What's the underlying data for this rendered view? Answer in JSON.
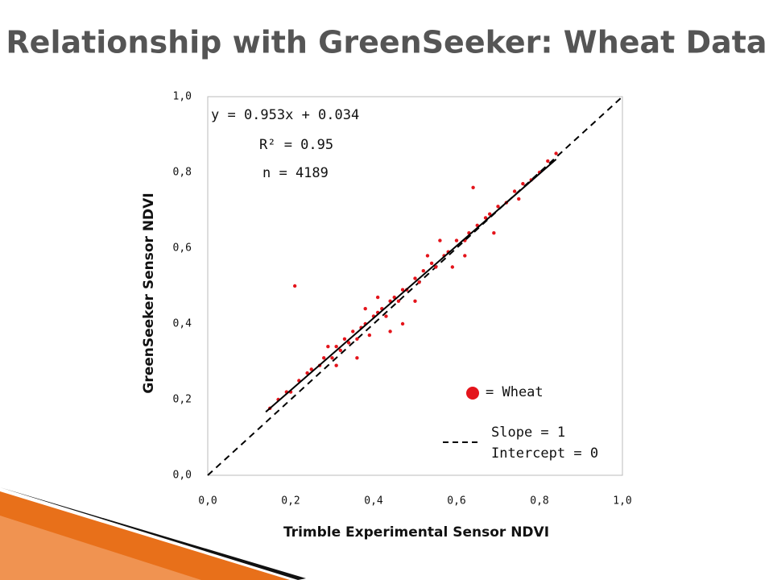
{
  "chart_data": {
    "type": "scatter",
    "title": "Relationship with GreenSeeker: Wheat Data",
    "x_label": "Trimble Experimental Sensor NDVI",
    "y_label": "GreenSeeker Sensor NDVI",
    "annotations": [
      "y = 0.953x + 0.034",
      "R² = 0.95",
      "n = 4189"
    ],
    "xlim": [
      0,
      1
    ],
    "ylim": [
      0,
      1
    ],
    "xticks": [
      {
        "value": 0,
        "label": "0,0"
      },
      {
        "value": 0.2,
        "label": "0,2"
      },
      {
        "value": 0.4,
        "label": "0,4"
      },
      {
        "value": 0.6,
        "label": "0,6"
      },
      {
        "value": 0.8,
        "label": "0,8"
      },
      {
        "value": 1,
        "label": "1,0"
      }
    ],
    "yticks": [
      {
        "value": 0,
        "label": "0,0"
      },
      {
        "value": 0.2,
        "label": "0,2"
      },
      {
        "value": 0.4,
        "label": "0,4"
      },
      {
        "value": 0.6,
        "label": "0,6"
      },
      {
        "value": 0.8,
        "label": "0,8"
      },
      {
        "value": 1,
        "label": "1,0"
      }
    ],
    "series": [
      {
        "name": "= Wheat",
        "color": "#e4141b",
        "x": [
          0.15,
          0.17,
          0.19,
          0.2,
          0.22,
          0.24,
          0.25,
          0.27,
          0.28,
          0.3,
          0.31,
          0.32,
          0.33,
          0.34,
          0.35,
          0.36,
          0.37,
          0.38,
          0.39,
          0.4,
          0.41,
          0.42,
          0.43,
          0.44,
          0.45,
          0.46,
          0.47,
          0.48,
          0.5,
          0.51,
          0.52,
          0.54,
          0.55,
          0.57,
          0.58,
          0.6,
          0.62,
          0.63,
          0.65,
          0.67,
          0.68,
          0.7,
          0.72,
          0.74,
          0.76,
          0.78,
          0.8,
          0.82,
          0.84,
          0.21,
          0.29,
          0.36,
          0.41,
          0.47,
          0.53,
          0.59,
          0.64,
          0.69,
          0.75,
          0.31,
          0.38,
          0.44,
          0.5,
          0.56,
          0.62
        ],
        "values": [
          0.177,
          0.2,
          0.22,
          0.22,
          0.25,
          0.27,
          0.28,
          0.29,
          0.31,
          0.31,
          0.34,
          0.33,
          0.36,
          0.35,
          0.38,
          0.36,
          0.39,
          0.4,
          0.37,
          0.42,
          0.43,
          0.44,
          0.42,
          0.46,
          0.47,
          0.46,
          0.49,
          0.49,
          0.52,
          0.51,
          0.54,
          0.56,
          0.55,
          0.58,
          0.59,
          0.62,
          0.62,
          0.64,
          0.66,
          0.68,
          0.69,
          0.71,
          0.72,
          0.75,
          0.77,
          0.78,
          0.8,
          0.83,
          0.85,
          0.5,
          0.34,
          0.31,
          0.47,
          0.4,
          0.58,
          0.55,
          0.76,
          0.64,
          0.73,
          0.29,
          0.44,
          0.38,
          0.46,
          0.62,
          0.58
        ]
      }
    ],
    "trendline": {
      "slope": 0.953,
      "intercept": 0.034,
      "x_range": [
        0.14,
        0.84
      ],
      "color": "#000000"
    },
    "reference_line": {
      "label": "Slope = 1",
      "label2": "Intercept = 0",
      "slope": 1,
      "intercept": 0,
      "dashed": true
    }
  }
}
